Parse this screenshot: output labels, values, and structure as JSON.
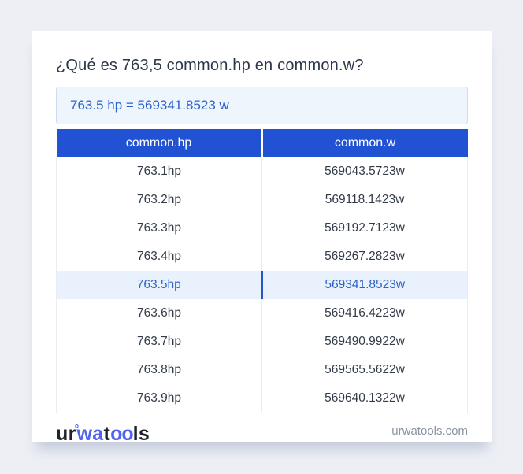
{
  "header": {
    "title": "¿Qué es 763,5 common.hp en common.w?",
    "result": "763.5 hp = 569341.8523 w"
  },
  "table": {
    "columns": [
      "common.hp",
      "common.w"
    ],
    "rows": [
      {
        "hp": "763.1hp",
        "w": "569043.5723w",
        "highlight": false
      },
      {
        "hp": "763.2hp",
        "w": "569118.1423w",
        "highlight": false
      },
      {
        "hp": "763.3hp",
        "w": "569192.7123w",
        "highlight": false
      },
      {
        "hp": "763.4hp",
        "w": "569267.2823w",
        "highlight": false
      },
      {
        "hp": "763.5hp",
        "w": "569341.8523w",
        "highlight": true
      },
      {
        "hp": "763.6hp",
        "w": "569416.4223w",
        "highlight": false
      },
      {
        "hp": "763.7hp",
        "w": "569490.9922w",
        "highlight": false
      },
      {
        "hp": "763.8hp",
        "w": "569565.5622w",
        "highlight": false
      },
      {
        "hp": "763.9hp",
        "w": "569640.1322w",
        "highlight": false
      }
    ]
  },
  "footer": {
    "logo": {
      "seg1": "ur",
      "ring": "°",
      "seg2": "wa",
      "seg3": "t",
      "seg4": "oo",
      "seg5": "ls"
    },
    "domain": "urwatools.com"
  },
  "colors": {
    "header_bg": "#2152d3",
    "accent_text": "#2b62c7",
    "highlight_bg": "#e9f2fc",
    "result_bg": "#eef5fd",
    "result_border": "#ccdcf2",
    "logo_blue": "#5263ee",
    "page_bg": "#edeff5"
  }
}
